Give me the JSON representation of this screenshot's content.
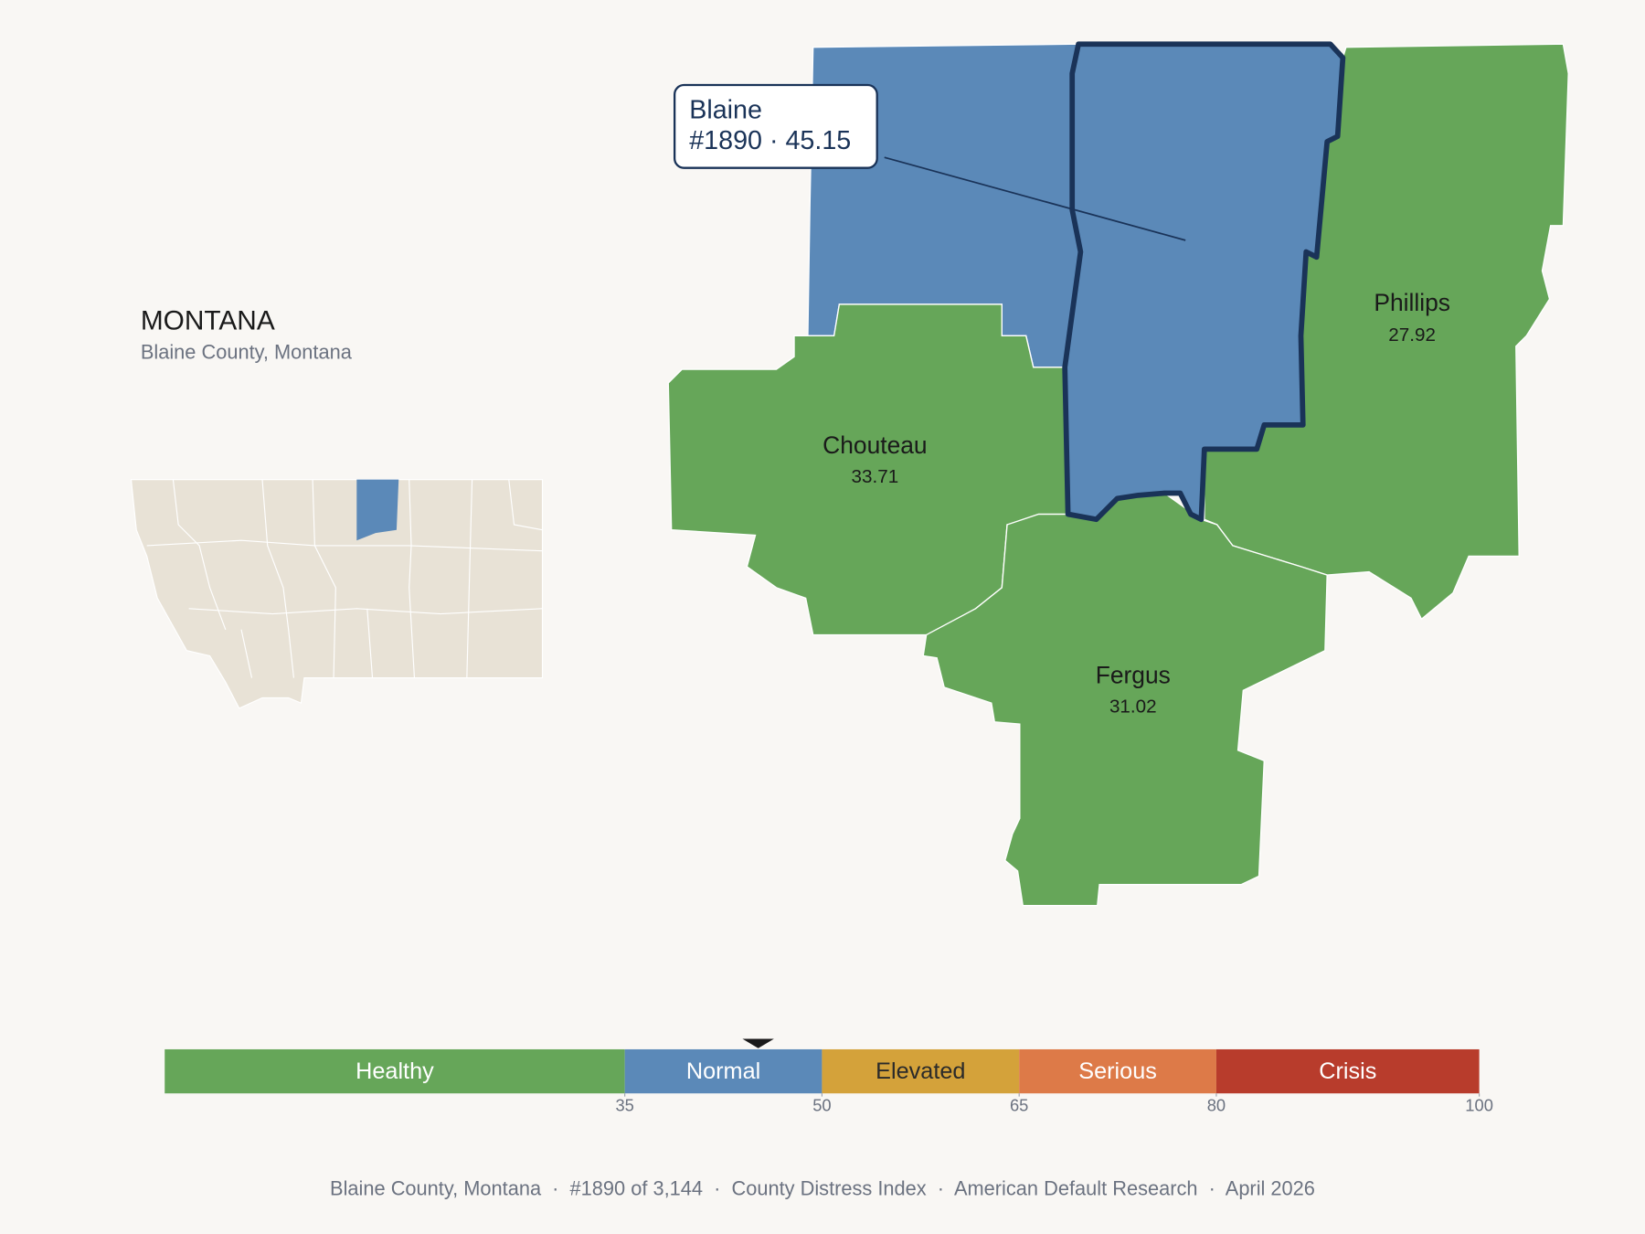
{
  "title": "MONTANA",
  "subtitle": "Blaine County, Montana",
  "callout": {
    "name": "Blaine",
    "text": "#1890 · 45.15",
    "color": "#5b89b8"
  },
  "neighbor_color": "#5b89b8",
  "counties": [
    {
      "name": "Chouteau",
      "value": 33.71,
      "color": "#66a659"
    },
    {
      "name": "Phillips",
      "value": 27.92,
      "color": "#66a659"
    },
    {
      "name": "Fergus",
      "value": 31.02,
      "color": "#66a659"
    }
  ],
  "scale": {
    "lim": [
      0,
      100
    ],
    "ticks": [
      35,
      50,
      65,
      80,
      100
    ],
    "marker": 45.15,
    "bands": [
      {
        "label": "Healthy",
        "color": "#66a659"
      },
      {
        "label": "Normal",
        "color": "#5b89b8"
      },
      {
        "label": "Elevated",
        "color": "#d4a23a"
      },
      {
        "label": "Serious",
        "color": "#dd7a48"
      },
      {
        "label": "Crisis",
        "color": "#b83c2c"
      }
    ]
  },
  "footer": "Blaine County, Montana  ·  #1890 of 3,144  ·  County Distress Index  ·  American Default Research  ·  April 2026"
}
